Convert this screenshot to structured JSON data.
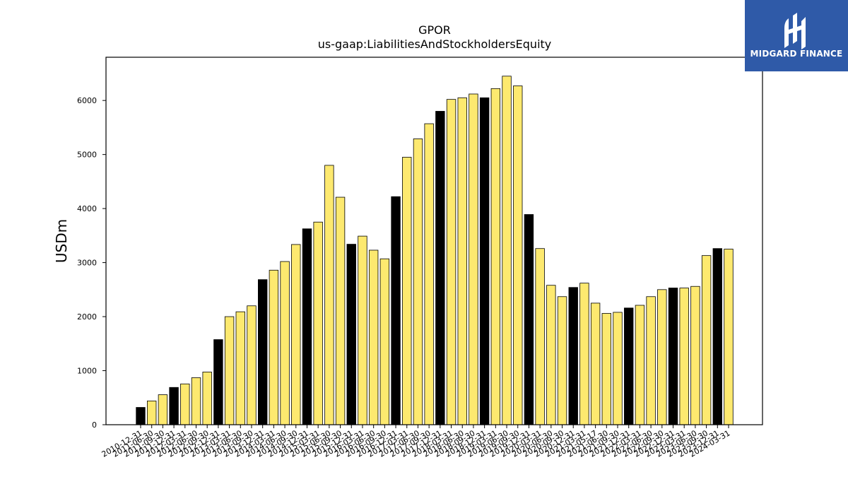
{
  "brand": {
    "name": "MIDGARD FINANCE",
    "logo_icon": "midgard-logo-icon",
    "bg_color": "#2f5aa8"
  },
  "chart_data": {
    "type": "bar",
    "title": "GPOR",
    "subtitle": "us-gaap:LiabilitiesAndStockholdersEquity",
    "xlabel": "",
    "ylabel": "USDm",
    "ylim": [
      0,
      6800
    ],
    "yticks": [
      0,
      1000,
      2000,
      3000,
      4000,
      5000,
      6000
    ],
    "grid": false,
    "colors": {
      "annual": "#000000",
      "quarterly": "#fde96f",
      "edge": "#000000"
    },
    "categories": [
      "2010-12-31",
      "2011-06-30",
      "2011-09-30",
      "2011-12-31",
      "2012-03-31",
      "2012-06-30",
      "2012-09-30",
      "2012-12-31",
      "2013-03-31",
      "2013-06-30",
      "2013-09-30",
      "2013-12-31",
      "2014-03-31",
      "2014-06-30",
      "2014-09-30",
      "2014-12-31",
      "2015-03-31",
      "2015-06-30",
      "2015-09-30",
      "2015-12-31",
      "2016-03-31",
      "2016-06-30",
      "2016-09-30",
      "2016-12-31",
      "2017-03-31",
      "2017-06-30",
      "2017-09-30",
      "2017-12-31",
      "2018-03-31",
      "2018-06-30",
      "2018-09-30",
      "2018-12-31",
      "2019-03-31",
      "2019-06-30",
      "2019-09-30",
      "2019-12-31",
      "2020-03-31",
      "2020-06-30",
      "2020-09-30",
      "2020-12-31",
      "2021-03-31",
      "2021-05-17",
      "2021-06-30",
      "2021-09-30",
      "2021-12-31",
      "2022-03-31",
      "2022-06-30",
      "2022-09-30",
      "2022-12-31",
      "2023-03-31",
      "2023-06-30",
      "2023-09-30",
      "2023-12-31",
      "2024-03-31"
    ],
    "values": [
      320,
      440,
      555,
      690,
      755,
      870,
      975,
      1575,
      2000,
      2090,
      2200,
      2685,
      2860,
      3020,
      3335,
      3625,
      3750,
      4800,
      4210,
      3340,
      3490,
      3230,
      3070,
      4220,
      4950,
      5290,
      5570,
      5800,
      6020,
      6050,
      6120,
      6050,
      6220,
      6450,
      6270,
      3890,
      3260,
      2580,
      2370,
      2540,
      2620,
      2250,
      2060,
      2080,
      2160,
      2210,
      2370,
      2500,
      2530,
      2530,
      2560,
      3130,
      3260,
      3250
    ],
    "annual_flags": [
      true,
      false,
      false,
      true,
      false,
      false,
      false,
      true,
      false,
      false,
      false,
      true,
      false,
      false,
      false,
      true,
      false,
      false,
      false,
      true,
      false,
      false,
      false,
      true,
      false,
      false,
      false,
      true,
      false,
      false,
      false,
      true,
      false,
      false,
      false,
      true,
      false,
      false,
      false,
      true,
      false,
      false,
      false,
      false,
      true,
      false,
      false,
      false,
      true,
      false,
      false,
      false,
      true,
      false
    ]
  }
}
